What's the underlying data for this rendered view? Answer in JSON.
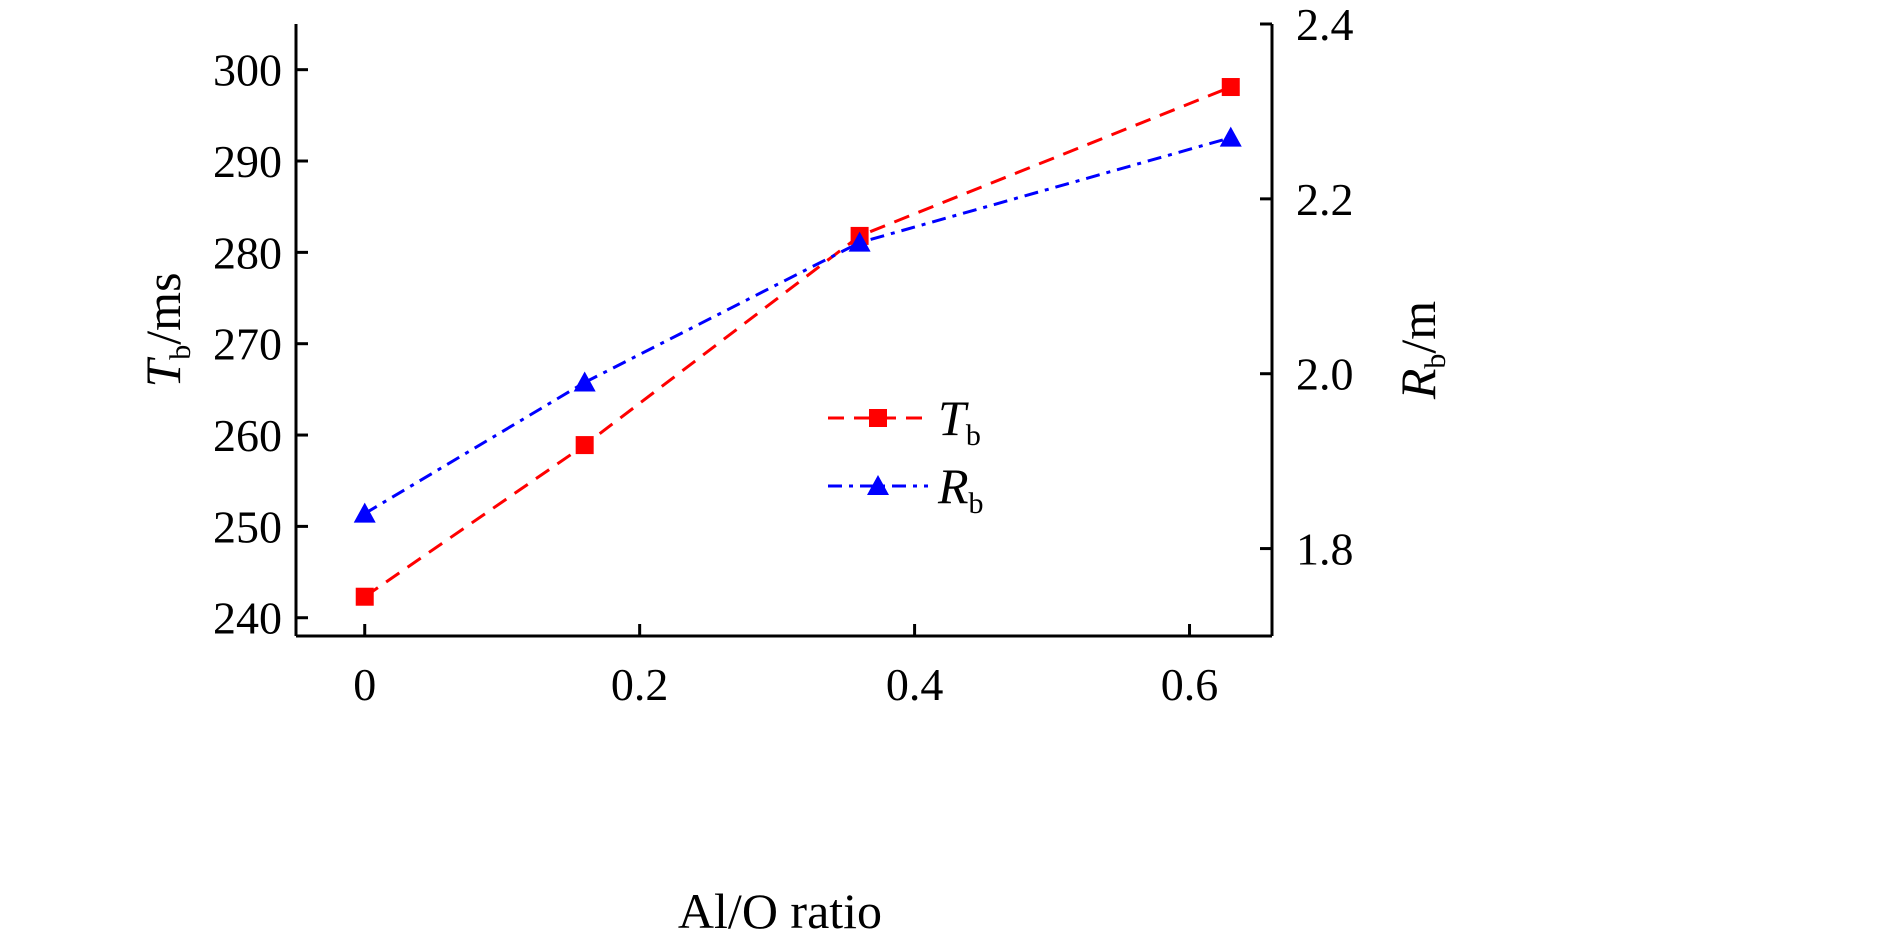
{
  "chart_data": {
    "type": "line",
    "xlabel": "Al/O ratio",
    "ylabel": {
      "main": "T",
      "sub": "b",
      "unit": "/ms"
    },
    "y2label": {
      "main": "R",
      "sub": "b",
      "unit": "/m"
    },
    "xlim": [
      -0.05,
      0.66
    ],
    "ylim": [
      238,
      305
    ],
    "y2lim": [
      1.7,
      2.4
    ],
    "x_ticks": [
      "0",
      "0.2",
      "0.4",
      "0.6"
    ],
    "x_tick_values": [
      0,
      0.2,
      0.4,
      0.6
    ],
    "y_ticks": [
      "240",
      "250",
      "260",
      "270",
      "280",
      "290",
      "300"
    ],
    "y_tick_values": [
      240,
      250,
      260,
      270,
      280,
      290,
      300
    ],
    "y2_ticks": [
      "1.8",
      "2.0",
      "2.2",
      "2.4"
    ],
    "y2_tick_values": [
      1.8,
      2.0,
      2.2,
      2.4
    ],
    "grid": false,
    "legend_position": "center",
    "series": [
      {
        "name": "T",
        "name_sub": "b",
        "axis": "left",
        "color": "#ff0000",
        "marker": "square",
        "line_style": "dashed",
        "x": [
          0,
          0.16,
          0.36,
          0.63
        ],
        "y": [
          242.3,
          258.9,
          281.8,
          298.1
        ]
      },
      {
        "name": "R",
        "name_sub": "b",
        "axis": "right",
        "color": "#0000ff",
        "marker": "triangle",
        "line_style": "dash-dot",
        "x": [
          0,
          0.16,
          0.36,
          0.63
        ],
        "y": [
          1.84,
          1.99,
          2.15,
          2.27
        ]
      }
    ]
  }
}
